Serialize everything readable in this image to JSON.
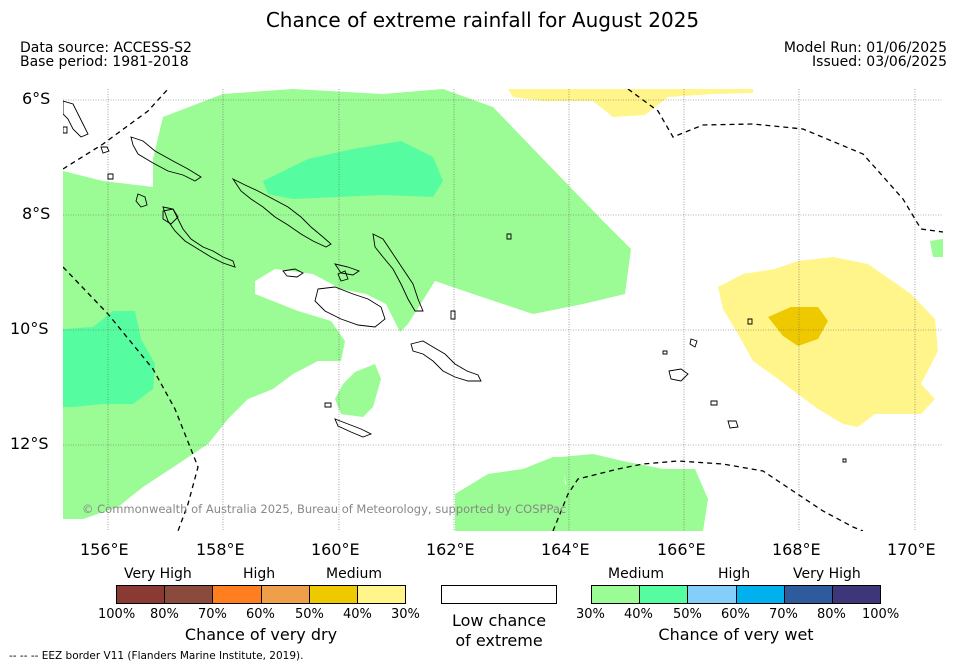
{
  "header": {
    "title": "Chance of extreme rainfall for August 2025",
    "data_source": "Data source: ACCESS-S2",
    "base_period": "Base period: 1981-2018",
    "model_run": "Model Run: 01/06/2025",
    "issued": "Issued: 03/06/2025"
  },
  "map": {
    "lat_labels": [
      "6°S",
      "8°S",
      "10°S",
      "12°S"
    ],
    "lon_labels": [
      "156°E",
      "158°E",
      "160°E",
      "162°E",
      "164°E",
      "166°E",
      "168°E",
      "170°E"
    ],
    "copyright": "© Commonwealth of Australia 2025, Bureau of Meteorology, supported by COSPPac",
    "eez_note": "--  --  -- EEZ border V11 (Flanders Marine Institute, 2019).",
    "colors": {
      "wet_medium": "#9bfb94",
      "wet_high": "#56fda0",
      "dry_medium": "#fff58a",
      "dry_high": "#efc900",
      "land_outline": "#000000",
      "grid": "#555555"
    }
  },
  "legend": {
    "dry": {
      "levels": [
        "Very High",
        "High",
        "Medium"
      ],
      "ticks": [
        "100%",
        "80%",
        "70%",
        "60%",
        "50%",
        "40%",
        "30%"
      ],
      "colors": [
        "#8a3a33",
        "#8a4b3c",
        "#ff7f20",
        "#ef9e4a",
        "#efc900",
        "#fff58a"
      ],
      "title": "Chance of very dry"
    },
    "neutral": {
      "title_line1": "Low chance",
      "title_line2": "of extreme"
    },
    "wet": {
      "levels": [
        "Medium",
        "High",
        "Very High"
      ],
      "ticks": [
        "30%",
        "40%",
        "50%",
        "60%",
        "70%",
        "80%",
        "100%"
      ],
      "colors": [
        "#9bfb94",
        "#56fda0",
        "#86cefa",
        "#00b1ee",
        "#2d5b9b",
        "#3d3779"
      ],
      "title": "Chance of very wet"
    }
  }
}
